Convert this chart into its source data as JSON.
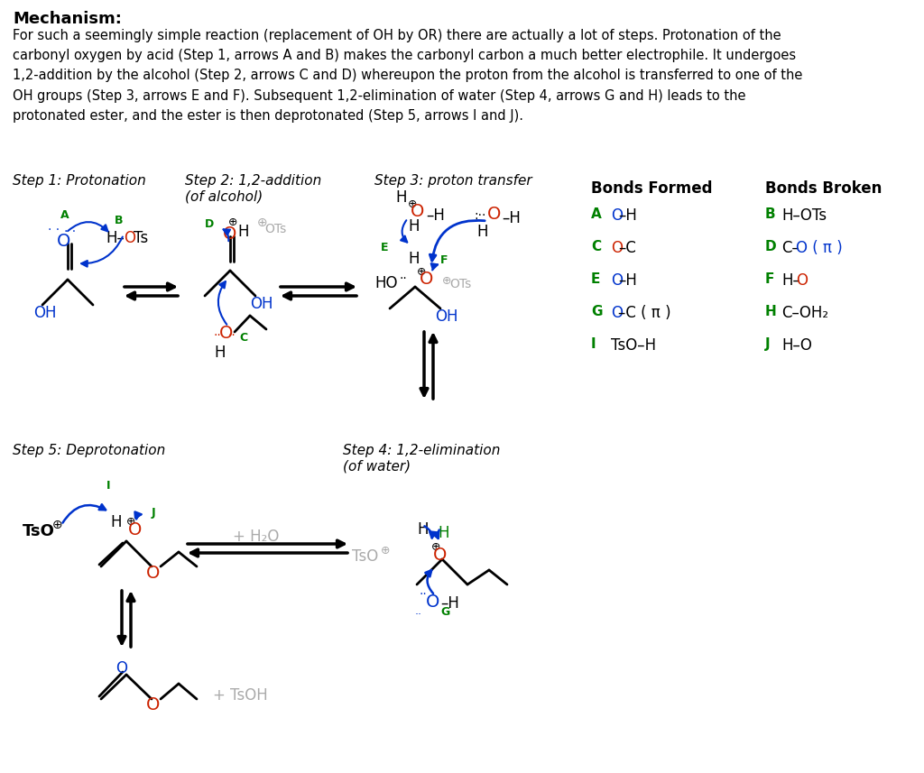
{
  "bg_color": "#ffffff",
  "black": "#000000",
  "green": "#008000",
  "blue": "#0033cc",
  "red": "#cc2200",
  "gray": "#aaaaaa",
  "title": "Mechanism:",
  "body": "For such a seemingly simple reaction (replacement of OH by OR) there are actually a lot of steps. Protonation of the\ncarbonyl oxygen by acid (Step 1, arrows A and B) makes the carbonyl carbon a much better electrophile. It undergoes\n1,2-addition by the alcohol (Step 2, arrows C and D) whereupon the proton from the alcohol is transferred to one of the\nOH groups (Step 3, arrows E and F). Subsequent 1,2-elimination of water (Step 4, arrows G and H) leads to the\nprotonated ester, and the ester is then deprotonated (Step 5, arrows I and J).",
  "step1_label": "Step 1: Protonation",
  "step2_label": "Step 2: 1,2-addition\n(of alcohol)",
  "step3_label": "Step 3: proton transfer",
  "step4_label": "Step 4: 1,2-elimination\n(of water)",
  "step5_label": "Step 5: Deprotonation",
  "bf_header": "Bonds Formed",
  "bb_header": "Bonds Broken"
}
